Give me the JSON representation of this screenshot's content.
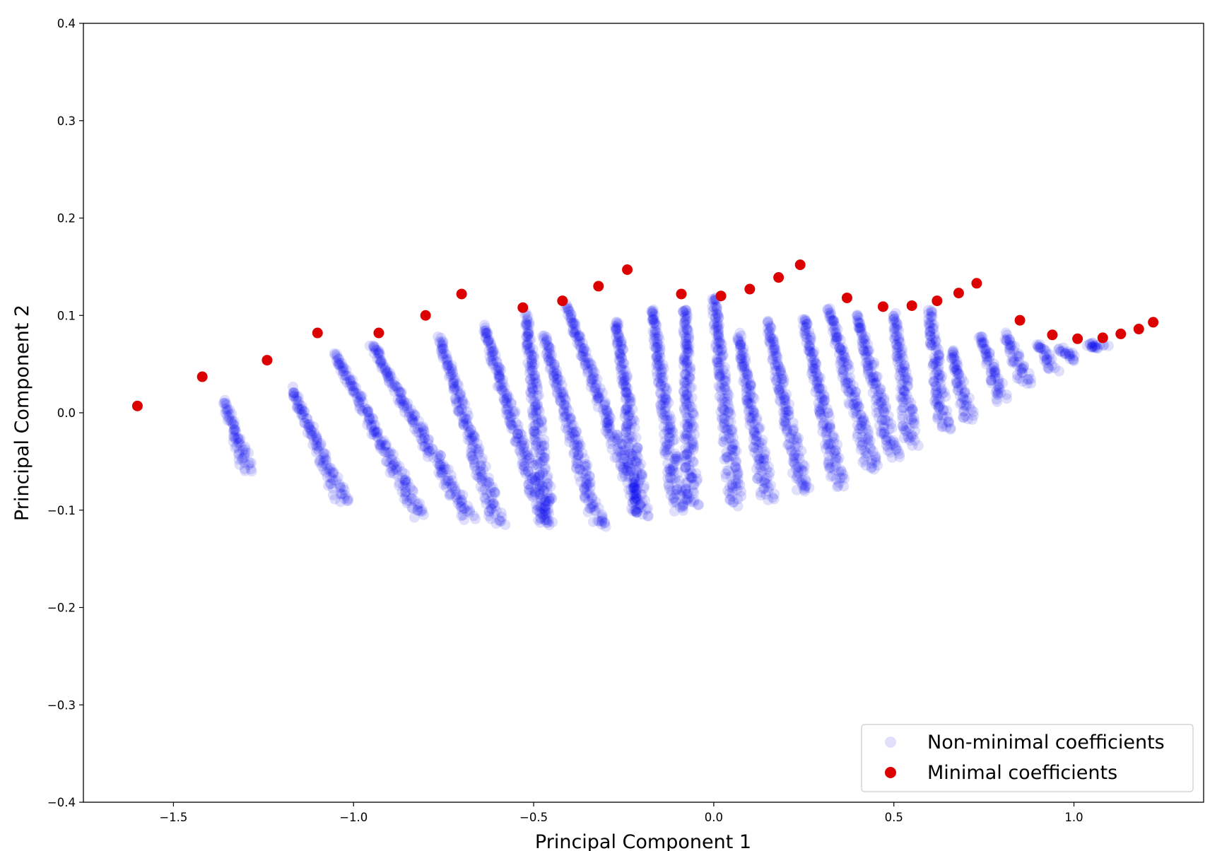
{
  "chart_data": {
    "type": "scatter",
    "xlabel": "Principal Component 1",
    "ylabel": "Principal Component 2",
    "xlim": [
      -1.75,
      1.36
    ],
    "ylim": [
      -0.4,
      0.4
    ],
    "x_ticks": [
      -1.5,
      -1.0,
      -0.5,
      0.0,
      0.5,
      1.0
    ],
    "x_tick_labels": [
      "−1.5",
      "−1.0",
      "−0.5",
      "0.0",
      "0.5",
      "1.0"
    ],
    "y_ticks": [
      -0.4,
      -0.3,
      -0.2,
      -0.1,
      0.0,
      0.1,
      0.2,
      0.3,
      0.4
    ],
    "y_tick_labels": [
      "−0.4",
      "−0.3",
      "−0.2",
      "−0.1",
      "0.0",
      "0.1",
      "0.2",
      "0.3",
      "0.4"
    ],
    "grid": false,
    "legend_position": "lower-right",
    "series": [
      {
        "name": "Non-minimal coefficients",
        "color": "#0000ee",
        "opacity": 0.12,
        "strands": [
          [
            -1.36,
            0.011,
            -1.29,
            -0.06
          ],
          [
            -1.17,
            0.024,
            -1.03,
            -0.092
          ],
          [
            -1.05,
            0.061,
            -0.82,
            -0.105
          ],
          [
            -0.95,
            0.071,
            -0.68,
            -0.108
          ],
          [
            -0.76,
            0.076,
            -0.6,
            -0.113
          ],
          [
            -0.64,
            0.089,
            -0.47,
            -0.11
          ],
          [
            -0.52,
            0.1,
            -0.46,
            -0.116
          ],
          [
            -0.47,
            0.078,
            -0.32,
            -0.117
          ],
          [
            -0.41,
            0.11,
            -0.2,
            -0.105
          ],
          [
            -0.27,
            0.095,
            -0.2,
            -0.103
          ],
          [
            -0.17,
            0.107,
            -0.1,
            -0.1
          ],
          [
            -0.08,
            0.108,
            -0.06,
            -0.096
          ],
          [
            0.0,
            0.12,
            0.06,
            -0.093
          ],
          [
            0.07,
            0.08,
            0.15,
            -0.088
          ],
          [
            0.15,
            0.092,
            0.25,
            -0.082
          ],
          [
            0.25,
            0.097,
            0.35,
            -0.075
          ],
          [
            0.32,
            0.107,
            0.44,
            -0.058
          ],
          [
            0.4,
            0.1,
            0.5,
            -0.045
          ],
          [
            0.5,
            0.1,
            0.55,
            -0.032
          ],
          [
            0.6,
            0.105,
            0.64,
            -0.018
          ],
          [
            0.66,
            0.065,
            0.71,
            -0.006
          ],
          [
            0.74,
            0.08,
            0.8,
            0.013
          ],
          [
            0.81,
            0.08,
            0.87,
            0.03
          ],
          [
            0.9,
            0.072,
            0.95,
            0.045
          ],
          [
            0.96,
            0.067,
            1.01,
            0.055
          ],
          [
            1.04,
            0.07,
            1.08,
            0.068
          ]
        ]
      },
      {
        "name": "Minimal coefficients",
        "color": "#dd0000",
        "opacity": 1,
        "points": [
          [
            -1.6,
            0.007
          ],
          [
            -1.42,
            0.037
          ],
          [
            -1.24,
            0.054
          ],
          [
            -1.1,
            0.082
          ],
          [
            -0.93,
            0.082
          ],
          [
            -0.8,
            0.1
          ],
          [
            -0.7,
            0.122
          ],
          [
            -0.53,
            0.108
          ],
          [
            -0.42,
            0.115
          ],
          [
            -0.32,
            0.13
          ],
          [
            -0.24,
            0.147
          ],
          [
            -0.09,
            0.122
          ],
          [
            0.02,
            0.12
          ],
          [
            0.1,
            0.127
          ],
          [
            0.18,
            0.139
          ],
          [
            0.24,
            0.152
          ],
          [
            0.37,
            0.118
          ],
          [
            0.47,
            0.109
          ],
          [
            0.55,
            0.11
          ],
          [
            0.62,
            0.115
          ],
          [
            0.68,
            0.123
          ],
          [
            0.73,
            0.133
          ],
          [
            0.85,
            0.095
          ],
          [
            0.94,
            0.08
          ],
          [
            1.01,
            0.076
          ],
          [
            1.08,
            0.077
          ],
          [
            1.13,
            0.081
          ],
          [
            1.18,
            0.086
          ],
          [
            1.22,
            0.093
          ]
        ]
      }
    ]
  }
}
